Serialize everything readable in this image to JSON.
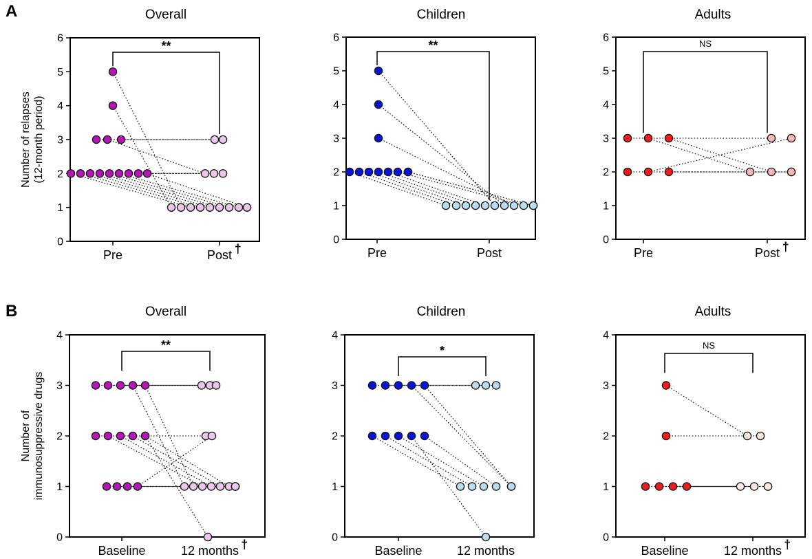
{
  "colors": {
    "overall_pre": "#b516b5",
    "overall_post": "#ecc6ec",
    "children_pre": "#0a14d6",
    "children_post": "#bcdcf2",
    "adults_pre": "#ee1c1c",
    "adults_post": "#f7b8b8",
    "adults_post_b": "#fbe8e4"
  },
  "chart_data": [
    {
      "type": "scatter",
      "panel": "A",
      "title": "Overall",
      "ylabel": "Number of relapses (12-month period)",
      "ylim": [
        0,
        6
      ],
      "yticks": [
        0,
        1,
        2,
        3,
        4,
        5,
        6
      ],
      "categories": [
        "Pre",
        "Post"
      ],
      "x_dagger": "†",
      "significance": "**",
      "pre": [
        5,
        4,
        3,
        3,
        3,
        2,
        2,
        2,
        2,
        2,
        2,
        2,
        2,
        2
      ],
      "post": [
        3,
        3,
        2,
        2,
        2,
        1,
        1,
        1,
        1,
        1,
        1,
        1,
        1,
        1
      ]
    },
    {
      "type": "scatter",
      "panel": "A",
      "title": "Children",
      "ylim": [
        0,
        6
      ],
      "yticks": [
        0,
        1,
        2,
        3,
        4,
        5,
        6
      ],
      "categories": [
        "Pre",
        "Post"
      ],
      "significance": "**",
      "pre": [
        5,
        4,
        3,
        2,
        2,
        2,
        2,
        2,
        2,
        2,
        2
      ],
      "post": [
        1,
        1,
        1,
        1,
        1,
        1,
        1,
        1,
        1,
        1,
        1
      ]
    },
    {
      "type": "scatter",
      "panel": "A",
      "title": "Adults",
      "ylim": [
        0,
        6
      ],
      "yticks": [
        0,
        1,
        2,
        3,
        4,
        5,
        6
      ],
      "categories": [
        "Pre",
        "Post"
      ],
      "x_dagger": "†",
      "significance": "NS",
      "pre": [
        3,
        3,
        3,
        2,
        2,
        2
      ],
      "post": [
        3,
        3,
        2,
        2,
        2,
        2
      ]
    },
    {
      "type": "scatter",
      "panel": "B",
      "title": "Overall",
      "ylabel": "Number of immunosuppressive drugs",
      "ylim": [
        0,
        4
      ],
      "yticks": [
        0,
        1,
        2,
        3,
        4
      ],
      "categories": [
        "Baseline",
        "12 months"
      ],
      "x_dagger": "†",
      "significance": "**",
      "pre": [
        3,
        3,
        3,
        3,
        3,
        2,
        2,
        2,
        2,
        2,
        2,
        1,
        1,
        1,
        1
      ],
      "post": [
        3,
        3,
        3,
        2,
        2,
        1,
        1,
        1,
        1,
        1,
        1,
        1,
        1,
        1,
        0
      ]
    },
    {
      "type": "scatter",
      "panel": "B",
      "title": "Children",
      "ylim": [
        0,
        4
      ],
      "yticks": [
        0,
        1,
        2,
        3,
        4
      ],
      "categories": [
        "Baseline",
        "12 months"
      ],
      "significance": "*",
      "pre": [
        3,
        3,
        3,
        3,
        3,
        2,
        2,
        2,
        2,
        2
      ],
      "post": [
        3,
        3,
        3,
        1,
        1,
        1,
        1,
        1,
        1,
        0
      ]
    },
    {
      "type": "scatter",
      "panel": "B",
      "title": "Adults",
      "ylim": [
        0,
        4
      ],
      "yticks": [
        0,
        1,
        2,
        3,
        4
      ],
      "categories": [
        "Baseline",
        "12 months"
      ],
      "x_dagger": "†",
      "significance": "NS",
      "pre": [
        3,
        2,
        1,
        1,
        1,
        1
      ],
      "post": [
        2,
        2,
        1,
        1,
        1,
        1
      ]
    }
  ]
}
